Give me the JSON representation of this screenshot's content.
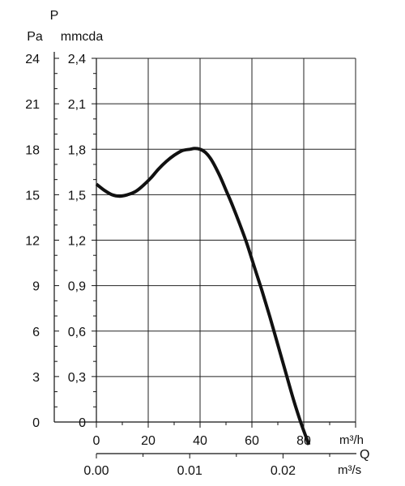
{
  "chart_data": {
    "type": "line",
    "y_axis_symbol": "P",
    "y_unit_pa": "Pa",
    "y_unit_mmcda": "mmcda",
    "x_axis_symbol": "Q",
    "x_unit_m3h": "m³/h",
    "x_unit_m3s": "m³/s",
    "xlim": [
      0,
      100
    ],
    "ylim_pa": [
      0,
      24
    ],
    "ylim_mmcda": [
      0,
      2.4
    ],
    "y_ticks_pa": [
      "0",
      "3",
      "6",
      "9",
      "12",
      "15",
      "18",
      "21",
      "24"
    ],
    "y_ticks_mmcda": [
      "0",
      "0,3",
      "0,6",
      "0,9",
      "1,2",
      "1,5",
      "1,8",
      "2,1",
      "2,4"
    ],
    "x_ticks_m3h": [
      "0",
      "20",
      "40",
      "60",
      "80"
    ],
    "x_ticks_m3s": [
      "0.00",
      "0.01",
      "0.02"
    ],
    "grid": true,
    "series": [
      {
        "x": [
          0,
          3,
          6,
          9,
          12,
          15,
          18,
          21,
          24,
          27,
          30,
          33,
          36,
          38,
          40,
          42,
          44,
          46,
          48,
          50,
          52,
          55,
          58,
          61,
          64,
          67,
          70,
          73,
          76,
          79,
          82
        ],
        "y": [
          15.7,
          15.3,
          15.0,
          14.9,
          15.0,
          15.2,
          15.6,
          16.1,
          16.7,
          17.2,
          17.6,
          17.9,
          18.0,
          18.05,
          18.0,
          17.8,
          17.4,
          16.8,
          16.1,
          15.3,
          14.5,
          13.2,
          11.8,
          10.2,
          8.6,
          6.9,
          5.1,
          3.3,
          1.5,
          -0.1,
          -1.5
        ]
      }
    ]
  }
}
